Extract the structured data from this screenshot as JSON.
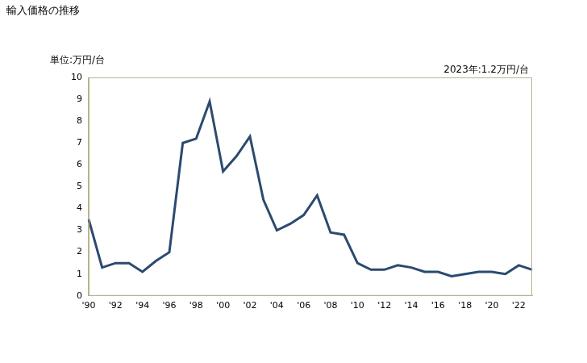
{
  "chart_data": {
    "type": "line",
    "title": "輸入価格の推移",
    "y_label": "単位:万円/台",
    "annotation": "2023年:1.2万円/台",
    "categories": [
      "'90",
      null,
      "'92",
      null,
      "'94",
      null,
      "'96",
      null,
      "'98",
      null,
      "'00",
      null,
      "'02",
      null,
      "'04",
      null,
      "'06",
      null,
      "'08",
      null,
      "'10",
      null,
      "'12",
      null,
      "'14",
      null,
      "'16",
      null,
      "'18",
      null,
      "'20",
      null,
      "'22",
      null
    ],
    "values": [
      3.5,
      1.3,
      1.5,
      1.5,
      1.1,
      1.6,
      2.0,
      7.0,
      7.2,
      8.9,
      5.7,
      6.4,
      7.3,
      4.4,
      3.0,
      3.3,
      3.7,
      4.6,
      2.9,
      2.8,
      1.5,
      1.2,
      1.2,
      1.4,
      1.3,
      1.1,
      1.1,
      0.9,
      1.0,
      1.1,
      1.1,
      1.0,
      1.4,
      1.2
    ],
    "color": "#2c4a70",
    "ylim": [
      0,
      10
    ],
    "yticks": [
      0,
      1,
      2,
      3,
      4,
      5,
      6,
      7,
      8,
      9,
      10
    ],
    "grid": false
  }
}
